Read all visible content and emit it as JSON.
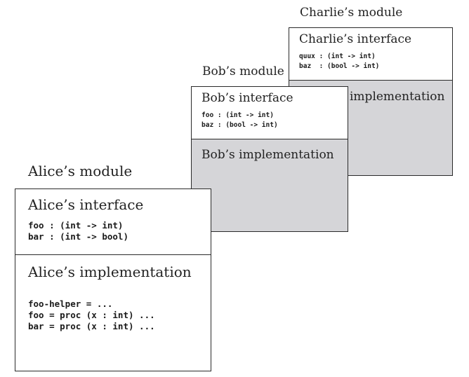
{
  "modules": {
    "charlie": {
      "title": "Charlie’s module",
      "interface_heading": "Charlie’s interface",
      "interface_code": "quux : (int -> int)\nbaz  : (bool -> int)",
      "implementation_heading": "implementation"
    },
    "bob": {
      "title": "Bob’s module",
      "interface_heading": "Bob’s interface",
      "interface_code": "foo : (int -> int)\nbaz : (bool -> int)",
      "implementation_heading": "Bob’s implementation"
    },
    "alice": {
      "title": "Alice’s module",
      "interface_heading": "Alice’s interface",
      "interface_code": "foo : (int -> int)\nbar : (int -> bool)",
      "implementation_heading": "Alice’s implementation",
      "implementation_code": "foo-helper = ...\nfoo = proc (x : int) ...\nbar = proc (x : int) ..."
    }
  },
  "colors": {
    "implementation_fill": "#d5d5d8",
    "border": "#2a2a2a"
  }
}
